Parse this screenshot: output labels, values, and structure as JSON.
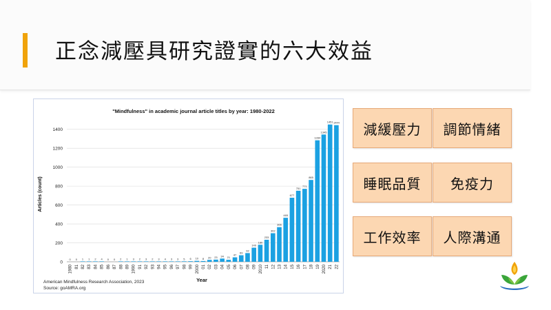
{
  "slide": {
    "title": "正念減壓具研究證實的六大效益",
    "accent_color": "#f0a30a"
  },
  "chart_data": {
    "type": "bar",
    "title": "\"Mindfulness\" in academic journal article titles by year: 1980-2022",
    "xlabel": "Year",
    "ylabel": "Articles (count)",
    "ylim": [
      0,
      1500
    ],
    "yticks": [
      0,
      200,
      400,
      600,
      800,
      1000,
      1200,
      1400
    ],
    "grid": true,
    "bar_color": "#1ba1e2",
    "categories": [
      "1980",
      "81",
      "82",
      "83",
      "84",
      "85",
      "86",
      "87",
      "88",
      "89",
      "1990",
      "91",
      "92",
      "93",
      "94",
      "95",
      "96",
      "97",
      "98",
      "99",
      "2000",
      "01",
      "02",
      "03",
      "04",
      "05",
      "06",
      "07",
      "08",
      "09",
      "2010",
      "11",
      "12",
      "13",
      "14",
      "15",
      "16",
      "17",
      "18",
      "19",
      "2020",
      "21",
      "22"
    ],
    "values": [
      0,
      0,
      1,
      1,
      2,
      4,
      0,
      0,
      2,
      1,
      3,
      2,
      3,
      2,
      3,
      4,
      3,
      3,
      5,
      6,
      10,
      8,
      20,
      23,
      34,
      21,
      47,
      69,
      92,
      149,
      180,
      233,
      302,
      366,
      465,
      677,
      751,
      771,
      865,
      1284,
      1345,
      1451,
      1444
    ],
    "source_lines": [
      "American Mindfulness Research Association, 2023",
      "Source: goAMRA.org"
    ]
  },
  "benefits": [
    "減緩壓力",
    "調節情緒",
    "睡眠品質",
    "免疫力",
    "工作效率",
    "人際溝通"
  ],
  "colors": {
    "box_fill": "#fcd7b2",
    "box_border": "#e6a877"
  }
}
